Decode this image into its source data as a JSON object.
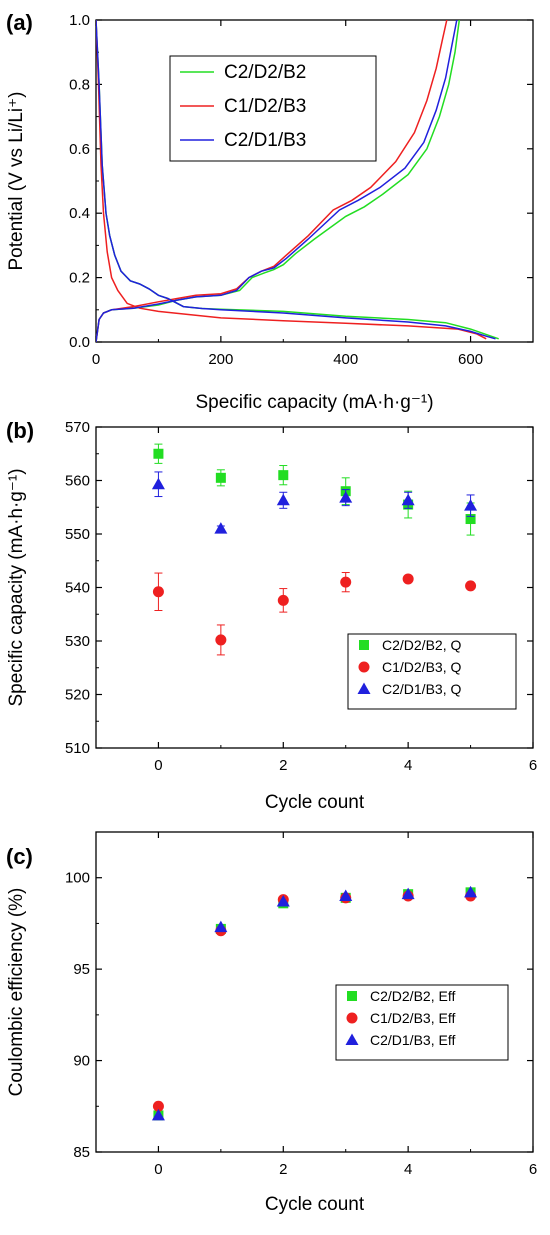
{
  "chart_data": [
    {
      "panel": "(a)",
      "type": "line",
      "title": "",
      "xlabel": "Specific capacity (mA·h·g⁻¹)",
      "ylabel": "Potential (V vs Li/Li⁺)",
      "xlim": [
        0,
        700
      ],
      "ylim": [
        0,
        1.0
      ],
      "xticks": [
        0,
        200,
        400,
        600
      ],
      "yticks": [
        0.0,
        0.2,
        0.4,
        0.6,
        0.8,
        1.0
      ],
      "xtick_labels": [
        "0",
        "200",
        "400",
        "600"
      ],
      "ytick_labels": [
        "0.0",
        "0.2",
        "0.4",
        "0.6",
        "0.8",
        "1.0"
      ],
      "legend_position": "top-center",
      "grid": false,
      "series": [
        {
          "name": "C2/D2/B2",
          "color": "#22dd22",
          "discharge": [
            [
              0,
              1.0
            ],
            [
              5,
              0.8
            ],
            [
              10,
              0.55
            ],
            [
              16,
              0.4
            ],
            [
              22,
              0.33
            ],
            [
              30,
              0.27
            ],
            [
              40,
              0.22
            ],
            [
              55,
              0.19
            ],
            [
              70,
              0.18
            ],
            [
              85,
              0.165
            ],
            [
              100,
              0.145
            ],
            [
              115,
              0.135
            ],
            [
              140,
              0.11
            ],
            [
              170,
              0.104
            ],
            [
              200,
              0.102
            ],
            [
              300,
              0.095
            ],
            [
              400,
              0.08
            ],
            [
              500,
              0.07
            ],
            [
              560,
              0.06
            ],
            [
              600,
              0.04
            ],
            [
              630,
              0.02
            ],
            [
              645,
              0.01
            ]
          ],
          "charge": [
            [
              0,
              0.0
            ],
            [
              5,
              0.07
            ],
            [
              12,
              0.09
            ],
            [
              25,
              0.1
            ],
            [
              60,
              0.105
            ],
            [
              100,
              0.115
            ],
            [
              130,
              0.13
            ],
            [
              160,
              0.14
            ],
            [
              200,
              0.145
            ],
            [
              230,
              0.16
            ],
            [
              250,
              0.2
            ],
            [
              270,
              0.215
            ],
            [
              285,
              0.225
            ],
            [
              300,
              0.24
            ],
            [
              320,
              0.275
            ],
            [
              350,
              0.32
            ],
            [
              400,
              0.39
            ],
            [
              430,
              0.42
            ],
            [
              460,
              0.46
            ],
            [
              500,
              0.52
            ],
            [
              530,
              0.6
            ],
            [
              550,
              0.7
            ],
            [
              565,
              0.8
            ],
            [
              575,
              0.9
            ],
            [
              582,
              1.0
            ]
          ]
        },
        {
          "name": "C1/D2/B3",
          "color": "#ee2020",
          "discharge": [
            [
              0,
              1.0
            ],
            [
              4,
              0.8
            ],
            [
              8,
              0.55
            ],
            [
              12,
              0.4
            ],
            [
              18,
              0.28
            ],
            [
              25,
              0.2
            ],
            [
              35,
              0.16
            ],
            [
              50,
              0.12
            ],
            [
              70,
              0.105
            ],
            [
              100,
              0.095
            ],
            [
              150,
              0.085
            ],
            [
              200,
              0.075
            ],
            [
              300,
              0.066
            ],
            [
              400,
              0.058
            ],
            [
              500,
              0.05
            ],
            [
              580,
              0.04
            ],
            [
              610,
              0.025
            ],
            [
              625,
              0.01
            ]
          ],
          "charge": [
            [
              0,
              0.0
            ],
            [
              5,
              0.07
            ],
            [
              12,
              0.09
            ],
            [
              25,
              0.1
            ],
            [
              60,
              0.11
            ],
            [
              100,
              0.125
            ],
            [
              130,
              0.135
            ],
            [
              160,
              0.145
            ],
            [
              200,
              0.15
            ],
            [
              225,
              0.165
            ],
            [
              245,
              0.2
            ],
            [
              265,
              0.22
            ],
            [
              285,
              0.235
            ],
            [
              305,
              0.27
            ],
            [
              340,
              0.33
            ],
            [
              380,
              0.41
            ],
            [
              410,
              0.44
            ],
            [
              440,
              0.48
            ],
            [
              480,
              0.56
            ],
            [
              510,
              0.65
            ],
            [
              530,
              0.75
            ],
            [
              545,
              0.85
            ],
            [
              555,
              0.94
            ],
            [
              562,
              1.0
            ]
          ]
        },
        {
          "name": "C2/D1/B3",
          "color": "#2020dd",
          "discharge": [
            [
              0,
              1.0
            ],
            [
              5,
              0.8
            ],
            [
              10,
              0.55
            ],
            [
              16,
              0.4
            ],
            [
              22,
              0.33
            ],
            [
              30,
              0.27
            ],
            [
              40,
              0.22
            ],
            [
              55,
              0.19
            ],
            [
              70,
              0.18
            ],
            [
              85,
              0.165
            ],
            [
              100,
              0.145
            ],
            [
              115,
              0.135
            ],
            [
              140,
              0.11
            ],
            [
              170,
              0.104
            ],
            [
              200,
              0.1
            ],
            [
              300,
              0.09
            ],
            [
              400,
              0.075
            ],
            [
              500,
              0.062
            ],
            [
              560,
              0.05
            ],
            [
              600,
              0.033
            ],
            [
              625,
              0.018
            ],
            [
              640,
              0.01
            ]
          ],
          "charge": [
            [
              0,
              0.0
            ],
            [
              5,
              0.07
            ],
            [
              12,
              0.09
            ],
            [
              25,
              0.1
            ],
            [
              60,
              0.105
            ],
            [
              100,
              0.118
            ],
            [
              130,
              0.13
            ],
            [
              160,
              0.14
            ],
            [
              200,
              0.145
            ],
            [
              225,
              0.16
            ],
            [
              245,
              0.2
            ],
            [
              265,
              0.22
            ],
            [
              285,
              0.23
            ],
            [
              305,
              0.26
            ],
            [
              340,
              0.32
            ],
            [
              390,
              0.41
            ],
            [
              420,
              0.44
            ],
            [
              455,
              0.48
            ],
            [
              495,
              0.54
            ],
            [
              525,
              0.62
            ],
            [
              545,
              0.72
            ],
            [
              560,
              0.82
            ],
            [
              570,
              0.92
            ],
            [
              578,
              1.0
            ]
          ]
        }
      ]
    },
    {
      "panel": "(b)",
      "type": "scatter",
      "title": "",
      "xlabel": "Cycle count",
      "ylabel": "Specific capacity (mA·h·g⁻¹)",
      "xlim": [
        -1,
        6
      ],
      "ylim": [
        510,
        570
      ],
      "xticks": [
        0,
        2,
        4,
        6
      ],
      "yticks": [
        510,
        520,
        530,
        540,
        550,
        560,
        570
      ],
      "xtick_labels": [
        "0",
        "2",
        "4",
        "6"
      ],
      "ytick_labels": [
        "510",
        "520",
        "530",
        "540",
        "550",
        "560",
        "570"
      ],
      "legend_position": "bottom-right",
      "grid": false,
      "series": [
        {
          "name": "C2/D2/B2, Q",
          "color": "#22dd22",
          "marker": "square",
          "x": [
            0,
            1,
            2,
            3,
            4,
            5
          ],
          "y": [
            565,
            560.5,
            561,
            558,
            555.5,
            552.8
          ],
          "err": [
            1.8,
            1.5,
            1.8,
            2.5,
            2.5,
            3.0
          ]
        },
        {
          "name": "C1/D2/B3, Q",
          "color": "#ee2020",
          "marker": "circle",
          "x": [
            0,
            1,
            2,
            3,
            4,
            5
          ],
          "y": [
            539.2,
            530.2,
            537.6,
            541,
            541.6,
            540.3
          ],
          "err": [
            3.5,
            2.8,
            2.2,
            1.8,
            0.5,
            0.5
          ]
        },
        {
          "name": "C2/D1/B3, Q",
          "color": "#2020dd",
          "marker": "triangle",
          "x": [
            0,
            1,
            2,
            3,
            4,
            5
          ],
          "y": [
            559.3,
            551,
            556.3,
            556.8,
            556.3,
            555.3
          ],
          "err": [
            2.3,
            0.5,
            1.5,
            1.5,
            1.5,
            2.0
          ]
        }
      ]
    },
    {
      "panel": "(c)",
      "type": "scatter",
      "title": "",
      "xlabel": "Cycle count",
      "ylabel": "Coulombic efficiency (%)",
      "xlim": [
        -1,
        6
      ],
      "ylim": [
        85,
        102.5
      ],
      "xticks": [
        0,
        2,
        4,
        6
      ],
      "yticks": [
        85,
        90,
        95,
        100
      ],
      "xtick_labels": [
        "0",
        "2",
        "4",
        "6"
      ],
      "ytick_labels": [
        "85",
        "90",
        "95",
        "100"
      ],
      "legend_position": "right",
      "grid": false,
      "series": [
        {
          "name": "C2/D2/B2, Eff",
          "color": "#22dd22",
          "marker": "square",
          "x": [
            0,
            1,
            2,
            3,
            4,
            5
          ],
          "y": [
            87.0,
            97.2,
            98.6,
            98.9,
            99.1,
            99.2
          ]
        },
        {
          "name": "C1/D2/B3, Eff",
          "color": "#ee2020",
          "marker": "circle",
          "x": [
            0,
            1,
            2,
            3,
            4,
            5
          ],
          "y": [
            87.5,
            97.1,
            98.8,
            98.9,
            99.0,
            99.0
          ]
        },
        {
          "name": "C2/D1/B3, Eff",
          "color": "#2020dd",
          "marker": "triangle",
          "x": [
            0,
            1,
            2,
            3,
            4,
            5
          ],
          "y": [
            87.0,
            97.3,
            98.7,
            99.0,
            99.1,
            99.2
          ]
        }
      ]
    }
  ]
}
